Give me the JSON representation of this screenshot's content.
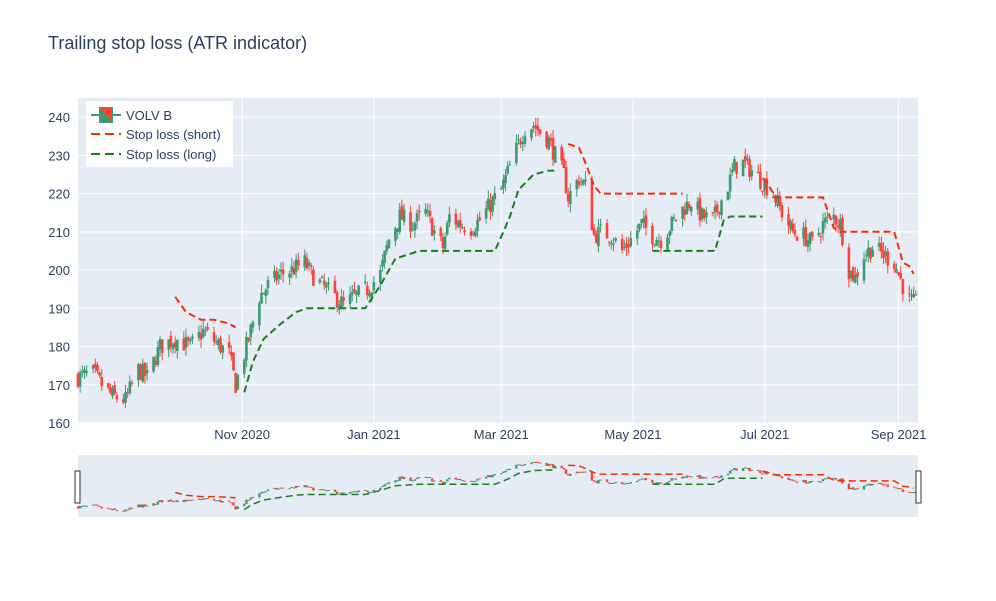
{
  "chart_data": {
    "type": "candlestick",
    "title": "Trailing stop loss (ATR indicator)",
    "xlabel": "",
    "ylabel": "",
    "ylim": [
      160,
      245
    ],
    "xlim": [
      "2020-08-17",
      "2021-09-10"
    ],
    "yticks": [
      160,
      170,
      180,
      190,
      200,
      210,
      220,
      230,
      240
    ],
    "xticks": [
      {
        "date": "2020-11-01",
        "label": "Nov 2020"
      },
      {
        "date": "2021-01-01",
        "label": "Jan 2021"
      },
      {
        "date": "2021-03-01",
        "label": "Mar 2021"
      },
      {
        "date": "2021-05-01",
        "label": "May 2021"
      },
      {
        "date": "2021-07-01",
        "label": "Jul 2021"
      },
      {
        "date": "2021-09-01",
        "label": "Sep 2021"
      }
    ],
    "grid": true,
    "legend_position": "top-left",
    "rangeslider": true,
    "series": [
      {
        "name": "VOLV B",
        "kind": "candlestick",
        "increasing_color": "#3d9970",
        "decreasing_color": "#ff4136"
      },
      {
        "name": "Stop loss (short)",
        "kind": "line",
        "dash": "dash",
        "color": "#ff2a00"
      },
      {
        "name": "Stop loss (long)",
        "kind": "line",
        "dash": "dash",
        "color": "#1a7f1a"
      }
    ],
    "price_keypoints": [
      [
        "2020-08-17",
        172
      ],
      [
        "2020-08-24",
        173
      ],
      [
        "2020-08-28",
        170
      ],
      [
        "2020-09-02",
        167
      ],
      [
        "2020-09-08",
        166
      ],
      [
        "2020-09-14",
        174
      ],
      [
        "2020-09-18",
        172
      ],
      [
        "2020-09-24",
        180
      ],
      [
        "2020-10-01",
        182
      ],
      [
        "2020-10-08",
        180
      ],
      [
        "2020-10-14",
        184
      ],
      [
        "2020-10-20",
        181
      ],
      [
        "2020-10-26",
        178
      ],
      [
        "2020-10-29",
        170
      ],
      [
        "2020-11-04",
        182
      ],
      [
        "2020-11-09",
        193
      ],
      [
        "2020-11-13",
        196
      ],
      [
        "2020-11-19",
        199
      ],
      [
        "2020-11-24",
        200
      ],
      [
        "2020-11-30",
        202
      ],
      [
        "2020-12-03",
        199
      ],
      [
        "2020-12-08",
        196
      ],
      [
        "2020-12-14",
        193
      ],
      [
        "2020-12-18",
        191
      ],
      [
        "2020-12-23",
        193
      ],
      [
        "2020-12-29",
        195
      ],
      [
        "2021-01-04",
        199
      ],
      [
        "2021-01-08",
        208
      ],
      [
        "2021-01-13",
        214
      ],
      [
        "2021-01-19",
        212
      ],
      [
        "2021-01-25",
        215
      ],
      [
        "2021-01-29",
        210
      ],
      [
        "2021-02-02",
        206
      ],
      [
        "2021-02-05",
        214
      ],
      [
        "2021-02-10",
        212
      ],
      [
        "2021-02-15",
        211
      ],
      [
        "2021-02-19",
        213
      ],
      [
        "2021-02-25",
        218
      ],
      [
        "2021-03-01",
        221
      ],
      [
        "2021-03-05",
        227
      ],
      [
        "2021-03-09",
        233
      ],
      [
        "2021-03-12",
        237
      ],
      [
        "2021-03-16",
        238
      ],
      [
        "2021-03-19",
        236
      ],
      [
        "2021-03-23",
        234
      ],
      [
        "2021-03-26",
        230
      ],
      [
        "2021-03-30",
        225
      ],
      [
        "2021-04-01",
        219
      ],
      [
        "2021-04-06",
        224
      ],
      [
        "2021-04-09",
        222
      ],
      [
        "2021-04-13",
        209
      ],
      [
        "2021-04-16",
        210
      ],
      [
        "2021-04-21",
        209
      ],
      [
        "2021-04-26",
        205
      ],
      [
        "2021-04-30",
        208
      ],
      [
        "2021-05-05",
        212
      ],
      [
        "2021-05-10",
        209
      ],
      [
        "2021-05-14",
        208
      ],
      [
        "2021-05-19",
        212
      ],
      [
        "2021-05-24",
        216
      ],
      [
        "2021-05-28",
        218
      ],
      [
        "2021-06-02",
        214
      ],
      [
        "2021-06-07",
        213
      ],
      [
        "2021-06-10",
        217
      ],
      [
        "2021-06-14",
        222
      ],
      [
        "2021-06-17",
        227
      ],
      [
        "2021-06-21",
        228
      ],
      [
        "2021-06-25",
        226
      ],
      [
        "2021-06-30",
        223
      ],
      [
        "2021-07-05",
        220
      ],
      [
        "2021-07-09",
        215
      ],
      [
        "2021-07-14",
        210
      ],
      [
        "2021-07-19",
        209
      ],
      [
        "2021-07-23",
        207
      ],
      [
        "2021-07-28",
        212
      ],
      [
        "2021-08-02",
        214
      ],
      [
        "2021-08-05",
        212
      ],
      [
        "2021-08-09",
        200
      ],
      [
        "2021-08-12",
        198
      ],
      [
        "2021-08-16",
        204
      ],
      [
        "2021-08-20",
        206
      ],
      [
        "2021-08-25",
        204
      ],
      [
        "2021-08-30",
        202
      ],
      [
        "2021-09-03",
        196
      ],
      [
        "2021-09-06",
        192
      ],
      [
        "2021-09-09",
        191
      ]
    ],
    "stop_short_segments": [
      [
        [
          "2020-10-01",
          193
        ],
        [
          "2020-10-06",
          189
        ],
        [
          "2020-10-13",
          187
        ],
        [
          "2020-10-19",
          187
        ],
        [
          "2020-10-26",
          186
        ],
        [
          "2020-10-29",
          185
        ]
      ],
      [
        [
          "2021-04-01",
          233
        ],
        [
          "2021-04-06",
          232
        ],
        [
          "2021-04-09",
          228
        ],
        [
          "2021-04-13",
          222
        ],
        [
          "2021-04-16",
          220
        ],
        [
          "2021-05-24",
          220
        ]
      ],
      [
        [
          "2021-06-30",
          224
        ],
        [
          "2021-07-02",
          223
        ],
        [
          "2021-07-06",
          219
        ],
        [
          "2021-07-28",
          219
        ],
        [
          "2021-08-02",
          211
        ],
        [
          "2021-08-05",
          210
        ],
        [
          "2021-08-30",
          210
        ],
        [
          "2021-09-03",
          202
        ],
        [
          "2021-09-06",
          201
        ],
        [
          "2021-09-08",
          199
        ]
      ]
    ],
    "stop_long_segments": [
      [
        [
          "2020-11-02",
          168
        ],
        [
          "2020-11-06",
          176
        ],
        [
          "2020-11-11",
          182
        ],
        [
          "2020-11-19",
          186
        ],
        [
          "2020-11-26",
          189
        ],
        [
          "2020-12-01",
          190
        ],
        [
          "2020-12-28",
          190
        ],
        [
          "2021-01-04",
          196
        ],
        [
          "2021-01-11",
          203
        ],
        [
          "2021-01-22",
          205
        ],
        [
          "2021-02-26",
          205
        ],
        [
          "2021-03-02",
          210
        ],
        [
          "2021-03-05",
          214
        ],
        [
          "2021-03-09",
          221
        ],
        [
          "2021-03-16",
          225
        ],
        [
          "2021-03-23",
          226
        ],
        [
          "2021-03-26",
          226
        ]
      ],
      [
        [
          "2021-05-10",
          205
        ],
        [
          "2021-06-08",
          205
        ],
        [
          "2021-06-12",
          213
        ],
        [
          "2021-06-15",
          214
        ],
        [
          "2021-06-30",
          214
        ]
      ]
    ]
  }
}
